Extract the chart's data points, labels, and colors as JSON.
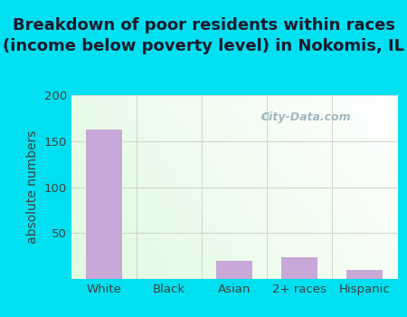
{
  "title": "Breakdown of poor residents within races\n(income below poverty level) in Nokomis, IL",
  "categories": [
    "White",
    "Black",
    "Asian",
    "2+ races",
    "Hispanic"
  ],
  "values": [
    163,
    0,
    20,
    24,
    10
  ],
  "bar_color": "#c8a8d8",
  "ylabel": "absolute numbers",
  "ylim": [
    0,
    200
  ],
  "yticks": [
    50,
    100,
    150,
    200
  ],
  "background_outer": "#00e0f0",
  "background_inner_tl": "#d8f0d8",
  "background_inner_br": "#f5fff5",
  "grid_color": "#d0d8c8",
  "watermark": "City-Data.com",
  "title_fontsize": 13,
  "ylabel_fontsize": 10,
  "tick_fontsize": 9.5,
  "title_color": "#1a1a2e",
  "tick_color": "#404040"
}
